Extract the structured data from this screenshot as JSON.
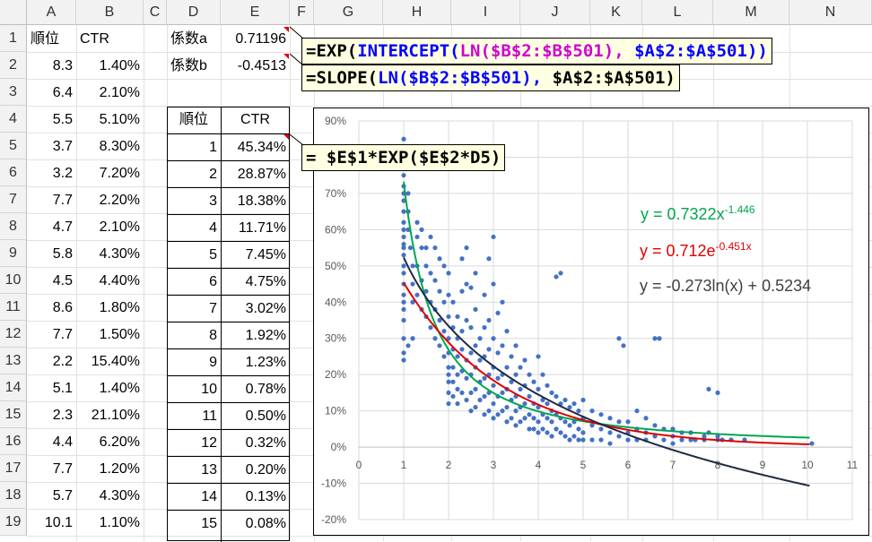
{
  "columns": [
    "A",
    "B",
    "C",
    "D",
    "E",
    "F",
    "G",
    "H",
    "I",
    "J",
    "K",
    "L",
    "M",
    "N"
  ],
  "rows": [
    "1",
    "2",
    "3",
    "4",
    "5",
    "6",
    "7",
    "8",
    "9",
    "10",
    "11",
    "12",
    "13",
    "14",
    "15",
    "16",
    "17",
    "18",
    "19"
  ],
  "col_a": [
    "順位",
    "8.3",
    "6.4",
    "5.5",
    "3.7",
    "3.2",
    "7.7",
    "4.7",
    "5.8",
    "4.5",
    "8.6",
    "7.7",
    "2.2",
    "5.1",
    "2.3",
    "4.4",
    "7.7",
    "5.7",
    "10.1"
  ],
  "col_b": [
    "CTR",
    "1.40%",
    "2.10%",
    "5.10%",
    "8.30%",
    "7.20%",
    "2.20%",
    "2.10%",
    "4.30%",
    "4.40%",
    "1.80%",
    "1.50%",
    "15.40%",
    "1.40%",
    "21.10%",
    "6.20%",
    "1.20%",
    "4.30%",
    "1.10%"
  ],
  "coef": {
    "a_label": "係数a",
    "a_value": "0.71196",
    "b_label": "係数b",
    "b_value": "-0.4513"
  },
  "table": {
    "header_rank": "順位",
    "header_ctr": "CTR",
    "ranks": [
      "1",
      "2",
      "3",
      "4",
      "5",
      "6",
      "7",
      "8",
      "9",
      "10",
      "11",
      "12",
      "13",
      "14",
      "15"
    ],
    "ctrs": [
      "45.34%",
      "28.87%",
      "18.38%",
      "11.71%",
      "7.45%",
      "4.75%",
      "3.02%",
      "1.92%",
      "1.23%",
      "0.78%",
      "0.50%",
      "0.32%",
      "0.20%",
      "0.13%",
      "0.08%"
    ]
  },
  "formulas": {
    "f1_p1": "=EXP(",
    "f1_p2": "INTERCEPT(",
    "f1_p3": "LN(",
    "f1_p4": "$B$2:$B$501",
    "f1_p5": "),",
    "f1_p6": " $A$2:$A$501",
    "f1_p7": "))",
    "f2_p1": "=SLOPE(",
    "f2_p2": "LN(",
    "f2_p3": "$B$2:$B$501",
    "f2_p4": "),",
    "f2_p5": " $A$2:$A$501",
    "f2_p6": ")",
    "f3": "= $E$1*EXP($E$2*D5)"
  },
  "colors": {
    "green": "#00a650",
    "red": "#e00000",
    "dark": "#1f2a44",
    "blue": "#4472c4",
    "formula_blue": "#0000ff",
    "formula_magenta": "#d000d0",
    "formula_green": "#008000"
  },
  "chart_data": {
    "type": "scatter",
    "xlim": [
      0,
      11
    ],
    "ylim": [
      -0.2,
      0.9
    ],
    "x_ticks": [
      "0",
      "1",
      "2",
      "3",
      "4",
      "5",
      "6",
      "7",
      "8",
      "9",
      "10",
      "11"
    ],
    "y_ticks": [
      "-20%",
      "-10%",
      "0%",
      "10%",
      "20%",
      "30%",
      "40%",
      "50%",
      "60%",
      "70%",
      "80%",
      "90%"
    ],
    "grid": "vertical and horizontal",
    "trendlines": [
      {
        "label_main": "y = 0.7322x",
        "label_sup": "-1.446",
        "type": "power",
        "a": 0.7322,
        "b": -1.446,
        "color": "#00a650"
      },
      {
        "label_main": "y = 0.712e",
        "label_sup": "-0.451x",
        "type": "exponential",
        "a": 0.712,
        "b": -0.451,
        "color": "#e00000"
      },
      {
        "label_main": "y = -0.273ln(x) + 0.5234",
        "label_sup": "",
        "type": "log",
        "a": -0.273,
        "b": 0.5234,
        "color": "#1f2a44"
      }
    ],
    "points": [
      [
        1,
        0.85
      ],
      [
        1,
        0.83
      ],
      [
        1,
        0.78
      ],
      [
        1,
        0.75
      ],
      [
        1,
        0.72
      ],
      [
        1,
        0.7
      ],
      [
        1,
        0.68
      ],
      [
        1,
        0.65
      ],
      [
        1,
        0.62
      ],
      [
        1,
        0.6
      ],
      [
        1,
        0.58
      ],
      [
        1,
        0.56
      ],
      [
        1,
        0.55
      ],
      [
        1,
        0.53
      ],
      [
        1,
        0.5
      ],
      [
        1,
        0.48
      ],
      [
        1,
        0.45
      ],
      [
        1,
        0.42
      ],
      [
        1,
        0.4
      ],
      [
        1,
        0.38
      ],
      [
        1,
        0.35
      ],
      [
        1,
        0.3
      ],
      [
        1,
        0.26
      ],
      [
        1,
        0.24
      ],
      [
        1.1,
        0.7
      ],
      [
        1.1,
        0.65
      ],
      [
        1.1,
        0.6
      ],
      [
        1.15,
        0.55
      ],
      [
        1.2,
        0.5
      ],
      [
        1.2,
        0.45
      ],
      [
        1.2,
        0.4
      ],
      [
        1.1,
        0.28
      ],
      [
        1.2,
        0.3
      ],
      [
        1.3,
        0.62
      ],
      [
        1.3,
        0.58
      ],
      [
        1.3,
        0.5
      ],
      [
        1.3,
        0.42
      ],
      [
        1.4,
        0.6
      ],
      [
        1.4,
        0.55
      ],
      [
        1.4,
        0.46
      ],
      [
        1.4,
        0.38
      ],
      [
        1.5,
        0.55
      ],
      [
        1.5,
        0.5
      ],
      [
        1.5,
        0.43
      ],
      [
        1.5,
        0.36
      ],
      [
        1.6,
        0.58
      ],
      [
        1.6,
        0.48
      ],
      [
        1.6,
        0.4
      ],
      [
        1.6,
        0.33
      ],
      [
        1.7,
        0.55
      ],
      [
        1.7,
        0.46
      ],
      [
        1.7,
        0.38
      ],
      [
        1.7,
        0.3
      ],
      [
        1.8,
        0.52
      ],
      [
        1.8,
        0.43
      ],
      [
        1.8,
        0.35
      ],
      [
        1.8,
        0.28
      ],
      [
        1.9,
        0.5
      ],
      [
        1.9,
        0.4
      ],
      [
        1.9,
        0.32
      ],
      [
        1.9,
        0.25
      ],
      [
        2,
        0.48
      ],
      [
        2,
        0.42
      ],
      [
        2,
        0.36
      ],
      [
        2,
        0.3
      ],
      [
        2,
        0.26
      ],
      [
        2,
        0.22
      ],
      [
        2,
        0.2
      ],
      [
        2,
        0.18
      ],
      [
        2,
        0.15
      ],
      [
        2,
        0.12
      ],
      [
        2.1,
        0.4
      ],
      [
        2.1,
        0.33
      ],
      [
        2.1,
        0.27
      ],
      [
        2.1,
        0.22
      ],
      [
        2.1,
        0.18
      ],
      [
        2.1,
        0.14
      ],
      [
        2.2,
        0.36
      ],
      [
        2.2,
        0.3
      ],
      [
        2.2,
        0.25
      ],
      [
        2.2,
        0.2
      ],
      [
        2.2,
        0.16
      ],
      [
        2.2,
        0.12
      ],
      [
        2.3,
        0.52
      ],
      [
        2.3,
        0.43
      ],
      [
        2.3,
        0.32
      ],
      [
        2.3,
        0.27
      ],
      [
        2.3,
        0.21
      ],
      [
        2.3,
        0.15
      ],
      [
        2.4,
        0.55
      ],
      [
        2.4,
        0.45
      ],
      [
        2.4,
        0.35
      ],
      [
        2.4,
        0.24
      ],
      [
        2.4,
        0.19
      ],
      [
        2.4,
        0.13
      ],
      [
        2.5,
        0.44
      ],
      [
        2.5,
        0.33
      ],
      [
        2.5,
        0.26
      ],
      [
        2.5,
        0.2
      ],
      [
        2.5,
        0.15
      ],
      [
        2.5,
        0.1
      ],
      [
        2.6,
        0.48
      ],
      [
        2.6,
        0.38
      ],
      [
        2.6,
        0.28
      ],
      [
        2.6,
        0.22
      ],
      [
        2.6,
        0.16
      ],
      [
        2.6,
        0.11
      ],
      [
        2.7,
        0.3
      ],
      [
        2.7,
        0.24
      ],
      [
        2.7,
        0.18
      ],
      [
        2.7,
        0.13
      ],
      [
        2.8,
        0.42
      ],
      [
        2.8,
        0.33
      ],
      [
        2.8,
        0.25
      ],
      [
        2.8,
        0.19
      ],
      [
        2.8,
        0.14
      ],
      [
        2.8,
        0.09
      ],
      [
        2.9,
        0.52
      ],
      [
        2.9,
        0.35
      ],
      [
        2.9,
        0.27
      ],
      [
        2.9,
        0.2
      ],
      [
        2.9,
        0.15
      ],
      [
        2.9,
        0.1
      ],
      [
        3,
        0.58
      ],
      [
        3,
        0.45
      ],
      [
        3,
        0.3
      ],
      [
        3,
        0.22
      ],
      [
        3,
        0.17
      ],
      [
        3,
        0.12
      ],
      [
        3,
        0.08
      ],
      [
        3.1,
        0.37
      ],
      [
        3.1,
        0.26
      ],
      [
        3.1,
        0.19
      ],
      [
        3.1,
        0.14
      ],
      [
        3.1,
        0.09
      ],
      [
        3.2,
        0.4
      ],
      [
        3.2,
        0.28
      ],
      [
        3.2,
        0.2
      ],
      [
        3.2,
        0.15
      ],
      [
        3.2,
        0.1
      ],
      [
        3.3,
        0.32
      ],
      [
        3.3,
        0.22
      ],
      [
        3.3,
        0.16
      ],
      [
        3.3,
        0.11
      ],
      [
        3.3,
        0.07
      ],
      [
        3.4,
        0.25
      ],
      [
        3.4,
        0.18
      ],
      [
        3.4,
        0.13
      ],
      [
        3.4,
        0.08
      ],
      [
        3.5,
        0.28
      ],
      [
        3.5,
        0.2
      ],
      [
        3.5,
        0.14
      ],
      [
        3.5,
        0.1
      ],
      [
        3.5,
        0.06
      ],
      [
        3.6,
        0.22
      ],
      [
        3.6,
        0.16
      ],
      [
        3.6,
        0.11
      ],
      [
        3.6,
        0.07
      ],
      [
        3.7,
        0.24
      ],
      [
        3.7,
        0.17
      ],
      [
        3.7,
        0.12
      ],
      [
        3.7,
        0.08
      ],
      [
        3.8,
        0.2
      ],
      [
        3.8,
        0.14
      ],
      [
        3.8,
        0.09
      ],
      [
        3.8,
        0.05
      ],
      [
        3.9,
        0.18
      ],
      [
        3.9,
        0.12
      ],
      [
        3.9,
        0.08
      ],
      [
        3.9,
        0.05
      ],
      [
        4,
        0.25
      ],
      [
        4,
        0.16
      ],
      [
        4,
        0.11
      ],
      [
        4,
        0.07
      ],
      [
        4,
        0.04
      ],
      [
        4.1,
        0.2
      ],
      [
        4.1,
        0.13
      ],
      [
        4.1,
        0.09
      ],
      [
        4.1,
        0.05
      ],
      [
        4.2,
        0.17
      ],
      [
        4.2,
        0.12
      ],
      [
        4.2,
        0.08
      ],
      [
        4.2,
        0.04
      ],
      [
        4.3,
        0.15
      ],
      [
        4.3,
        0.1
      ],
      [
        4.3,
        0.07
      ],
      [
        4.3,
        0.03
      ],
      [
        4.4,
        0.47
      ],
      [
        4.4,
        0.14
      ],
      [
        4.4,
        0.09
      ],
      [
        4.4,
        0.05
      ],
      [
        4.5,
        0.48
      ],
      [
        4.5,
        0.12
      ],
      [
        4.5,
        0.08
      ],
      [
        4.5,
        0.04
      ],
      [
        4.6,
        0.13
      ],
      [
        4.6,
        0.07
      ],
      [
        4.6,
        0.03
      ],
      [
        4.7,
        0.11
      ],
      [
        4.7,
        0.06
      ],
      [
        4.7,
        0.02
      ],
      [
        4.8,
        0.12
      ],
      [
        4.8,
        0.07
      ],
      [
        4.8,
        0.03
      ],
      [
        4.9,
        0.1
      ],
      [
        4.9,
        0.05
      ],
      [
        4.9,
        0.02
      ],
      [
        5,
        0.13
      ],
      [
        5,
        0.08
      ],
      [
        5,
        0.04
      ],
      [
        5,
        0.02
      ],
      [
        5.2,
        0.1
      ],
      [
        5.2,
        0.06
      ],
      [
        5.2,
        0.02
      ],
      [
        5.4,
        0.09
      ],
      [
        5.4,
        0.05
      ],
      [
        5.4,
        0.02
      ],
      [
        5.6,
        0.08
      ],
      [
        5.6,
        0.04
      ],
      [
        5.6,
        0.01
      ],
      [
        5.8,
        0.3
      ],
      [
        5.8,
        0.07
      ],
      [
        5.8,
        0.03
      ],
      [
        5.9,
        0.28
      ],
      [
        6,
        0.07
      ],
      [
        6,
        0.04
      ],
      [
        6,
        0.02
      ],
      [
        6.2,
        0.1
      ],
      [
        6.2,
        0.05
      ],
      [
        6.2,
        0.02
      ],
      [
        6.4,
        0.08
      ],
      [
        6.4,
        0.04
      ],
      [
        6.4,
        0.02
      ],
      [
        6.6,
        0.3
      ],
      [
        6.6,
        0.06
      ],
      [
        6.6,
        0.03
      ],
      [
        6.7,
        0.3
      ],
      [
        6.8,
        0.05
      ],
      [
        6.8,
        0.02
      ],
      [
        7,
        0.05
      ],
      [
        7,
        0.03
      ],
      [
        7,
        0.01
      ],
      [
        7.2,
        0.04
      ],
      [
        7.2,
        0.02
      ],
      [
        7.4,
        0.04
      ],
      [
        7.4,
        0.02
      ],
      [
        7.5,
        0.02
      ],
      [
        7.7,
        0.03
      ],
      [
        7.7,
        0.02
      ],
      [
        7.8,
        0.16
      ],
      [
        7.8,
        0.04
      ],
      [
        8,
        0.15
      ],
      [
        8,
        0.03
      ],
      [
        8,
        0.02
      ],
      [
        8.1,
        0.02
      ],
      [
        8.3,
        0.02
      ],
      [
        8.6,
        0.02
      ],
      [
        10.1,
        0.01
      ]
    ]
  }
}
